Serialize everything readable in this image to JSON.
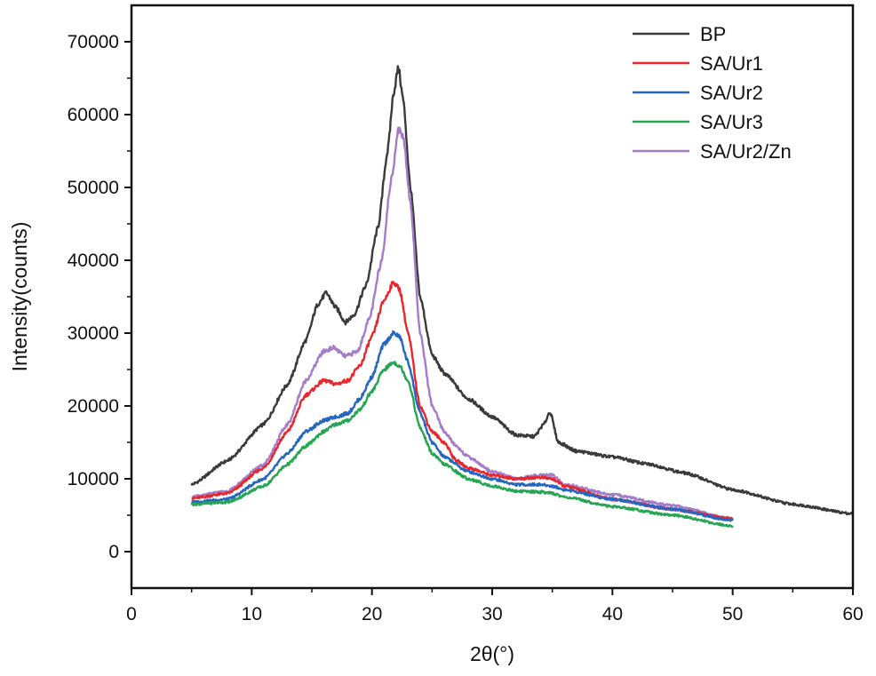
{
  "chart_data": {
    "type": "line",
    "title": "",
    "xlabel": "2θ(°)",
    "ylabel": "Intensity(counts)",
    "xlim": [
      0,
      60
    ],
    "ylim": [
      -5000,
      75000
    ],
    "xticks": [
      0,
      10,
      20,
      30,
      40,
      50,
      60
    ],
    "yticks": [
      0,
      10000,
      20000,
      30000,
      40000,
      50000,
      60000,
      70000
    ],
    "grid": false,
    "legend_position": "top-right",
    "series": [
      {
        "name": "BP",
        "color": "#3a3a3a",
        "x": [
          5,
          8,
          11,
          13,
          14.5,
          15.5,
          16.2,
          17,
          17.8,
          18.5,
          19.5,
          20.5,
          21.3,
          21.8,
          22.2,
          22.6,
          23.2,
          24,
          25,
          26,
          28,
          30,
          32,
          33.5,
          34.3,
          34.8,
          35.5,
          37,
          40,
          43,
          46,
          50,
          55,
          60
        ],
        "values": [
          9200,
          12500,
          17500,
          23000,
          29000,
          34000,
          35500,
          33500,
          31500,
          32500,
          36500,
          44500,
          55000,
          63000,
          66500,
          62000,
          50000,
          35000,
          27000,
          24500,
          21000,
          18500,
          16000,
          15800,
          17500,
          19200,
          15000,
          13800,
          13000,
          12000,
          10800,
          8500,
          6500,
          5200
        ]
      },
      {
        "name": "SA/Ur1",
        "color": "#e8262b",
        "x": [
          5,
          8,
          11,
          13,
          14.5,
          16,
          17,
          18,
          19,
          20,
          21,
          21.8,
          22.3,
          23,
          24,
          25,
          26,
          27,
          28,
          30,
          32,
          34,
          35,
          36,
          40,
          45,
          50
        ],
        "values": [
          7300,
          8000,
          11500,
          16500,
          21500,
          23500,
          23000,
          23500,
          25500,
          29500,
          34500,
          37000,
          36000,
          30000,
          20000,
          16500,
          15000,
          12500,
          11500,
          10500,
          10000,
          10200,
          10000,
          9000,
          7200,
          5800,
          4500
        ]
      },
      {
        "name": "SA/Ur2",
        "color": "#2566c0",
        "x": [
          5,
          8,
          11,
          13,
          14.5,
          16,
          17,
          18,
          19,
          20,
          21,
          21.8,
          22.3,
          23,
          24,
          25,
          26,
          28,
          30,
          32,
          34,
          35,
          36,
          40,
          45,
          50
        ],
        "values": [
          6800,
          7200,
          10000,
          13500,
          16500,
          18000,
          18500,
          19000,
          21000,
          24000,
          28500,
          30000,
          29500,
          26000,
          19000,
          15000,
          13000,
          11000,
          10000,
          9200,
          9200,
          9000,
          8500,
          7200,
          5800,
          4300
        ]
      },
      {
        "name": "SA/Ur3",
        "color": "#26a552",
        "x": [
          5,
          8,
          11,
          13,
          14.5,
          16,
          17,
          18,
          19,
          20,
          21,
          21.8,
          22.3,
          23,
          24,
          25,
          26,
          28,
          30,
          32,
          34,
          35,
          36,
          40,
          45,
          50
        ],
        "values": [
          6500,
          6800,
          9000,
          12000,
          14500,
          16500,
          17500,
          18000,
          19500,
          22000,
          25000,
          26000,
          25500,
          23500,
          17000,
          13500,
          12000,
          10000,
          9000,
          8300,
          8200,
          8000,
          7500,
          6200,
          5000,
          3500
        ]
      },
      {
        "name": "SA/Ur2/Zn",
        "color": "#a57cc9",
        "x": [
          5,
          8,
          11,
          13,
          14.5,
          16,
          16.8,
          17.8,
          18.8,
          19.8,
          20.8,
          21.6,
          22.2,
          22.6,
          23.2,
          24,
          25,
          26,
          27,
          28,
          30,
          32,
          34,
          35,
          36,
          40,
          45,
          50
        ],
        "values": [
          7500,
          8300,
          12000,
          17500,
          23500,
          27500,
          28000,
          26800,
          27500,
          32000,
          40000,
          51000,
          58000,
          57000,
          48000,
          30000,
          20000,
          16500,
          14500,
          13000,
          11000,
          10000,
          10500,
          10500,
          9200,
          7800,
          6300,
          4500
        ]
      }
    ]
  }
}
